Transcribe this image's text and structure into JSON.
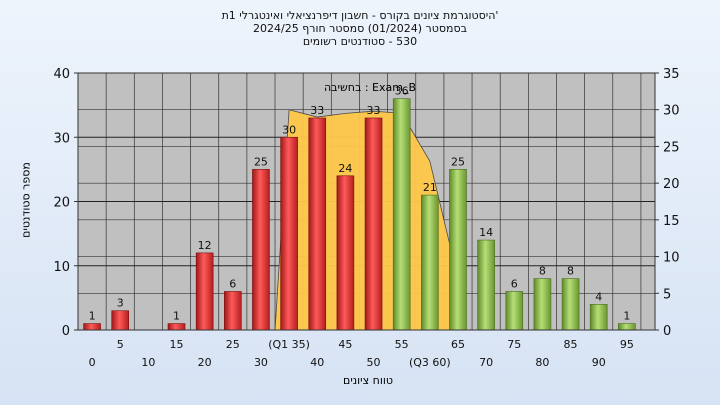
{
  "titles": {
    "line1": "'היסטוגרמת ציונים בקורס - חשבון דיפרנציאלי ואינטגרלי 1ת",
    "line2": "בסמסטר (01/2024) סמסטר חורף 2024/25",
    "line3": "530 - סטודנטים רשומים"
  },
  "chart_data": {
    "type": "bar",
    "ylabel": "מספר סטודנטים",
    "xlabel": "טווח ציונים",
    "overlay_label": "Exam_B : בחשיבה",
    "ylim_left": [
      0,
      40
    ],
    "yticks_left": [
      0,
      10,
      20,
      30,
      40
    ],
    "ylim_right": [
      0,
      35
    ],
    "yticks_right": [
      0,
      5,
      10,
      15,
      20,
      25,
      30,
      35
    ],
    "grid": true,
    "bars": [
      {
        "x": 0,
        "value": 1,
        "label": "1",
        "color": "red"
      },
      {
        "x": 5,
        "value": 3,
        "label": "3",
        "color": "red"
      },
      {
        "x": 15,
        "value": 1,
        "label": "1",
        "color": "red"
      },
      {
        "x": 20,
        "value": 12,
        "label": "12",
        "color": "red"
      },
      {
        "x": 25,
        "value": 6,
        "label": "6",
        "color": "red"
      },
      {
        "x": 30,
        "value": 25,
        "label": "25",
        "color": "red"
      },
      {
        "x": 35,
        "value": 30,
        "label": "30",
        "color": "red"
      },
      {
        "x": 40,
        "value": 33,
        "label": "33",
        "color": "red"
      },
      {
        "x": 45,
        "value": 24,
        "label": "24",
        "color": "red"
      },
      {
        "x": 50,
        "value": 33,
        "label": "33",
        "color": "red"
      },
      {
        "x": 55,
        "value": 36,
        "label": "36",
        "color": "green"
      },
      {
        "x": 60,
        "value": 21,
        "label": "21",
        "color": "green"
      },
      {
        "x": 65,
        "value": 25,
        "label": "25",
        "color": "green"
      },
      {
        "x": 70,
        "value": 14,
        "label": "14",
        "color": "green"
      },
      {
        "x": 75,
        "value": 6,
        "label": "6",
        "color": "green"
      },
      {
        "x": 80,
        "value": 8,
        "label": "8",
        "color": "green"
      },
      {
        "x": 85,
        "value": 8,
        "label": "8",
        "color": "green"
      },
      {
        "x": 90,
        "value": 4,
        "label": "4",
        "color": "green"
      },
      {
        "x": 95,
        "value": 1,
        "label": "1",
        "color": "green"
      }
    ],
    "xticks": [
      {
        "x": 0,
        "label": "0",
        "row": 2
      },
      {
        "x": 5,
        "label": "5",
        "row": 1
      },
      {
        "x": 10,
        "label": "10",
        "row": 2
      },
      {
        "x": 15,
        "label": "15",
        "row": 1
      },
      {
        "x": 20,
        "label": "20",
        "row": 2
      },
      {
        "x": 25,
        "label": "25",
        "row": 1
      },
      {
        "x": 30,
        "label": "30",
        "row": 2
      },
      {
        "x": 35,
        "label": "(Q1 35)",
        "row": 1
      },
      {
        "x": 40,
        "label": "40",
        "row": 2
      },
      {
        "x": 45,
        "label": "45",
        "row": 1
      },
      {
        "x": 50,
        "label": "50",
        "row": 2
      },
      {
        "x": 55,
        "label": "55",
        "row": 1
      },
      {
        "x": 60,
        "label": "(Q3 60)",
        "row": 2
      },
      {
        "x": 65,
        "label": "65",
        "row": 1
      },
      {
        "x": 70,
        "label": "70",
        "row": 2
      },
      {
        "x": 75,
        "label": "75",
        "row": 1
      },
      {
        "x": 80,
        "label": "80",
        "row": 2
      },
      {
        "x": 85,
        "label": "85",
        "row": 1
      },
      {
        "x": 90,
        "label": "90",
        "row": 2
      },
      {
        "x": 95,
        "label": "95",
        "row": 1
      }
    ],
    "area_right_axis": [
      {
        "x": 35,
        "value": 30
      },
      {
        "x": 40,
        "value": 29
      },
      {
        "x": 45,
        "value": 29.5
      },
      {
        "x": 50,
        "value": 29.8
      },
      {
        "x": 55,
        "value": 29.5
      },
      {
        "x": 60,
        "value": 23
      },
      {
        "x": 65,
        "value": 7
      }
    ],
    "colors": {
      "red_bar": "#e03030",
      "green_bar": "#8fbf4a",
      "area": "#ffc84a",
      "plot_bg": "#c0c0c0"
    }
  }
}
